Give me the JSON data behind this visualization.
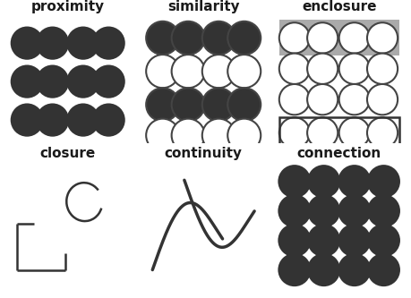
{
  "title_fontsize": 11,
  "title_color": "#1a1a1a",
  "dot_dark": "#333333",
  "dot_light": "#ffffff",
  "dot_edge": "#444444",
  "gray_bg": "#aaaaaa",
  "panel_titles": [
    "proximity",
    "similarity",
    "enclosure",
    "closure",
    "continuity",
    "connection"
  ]
}
